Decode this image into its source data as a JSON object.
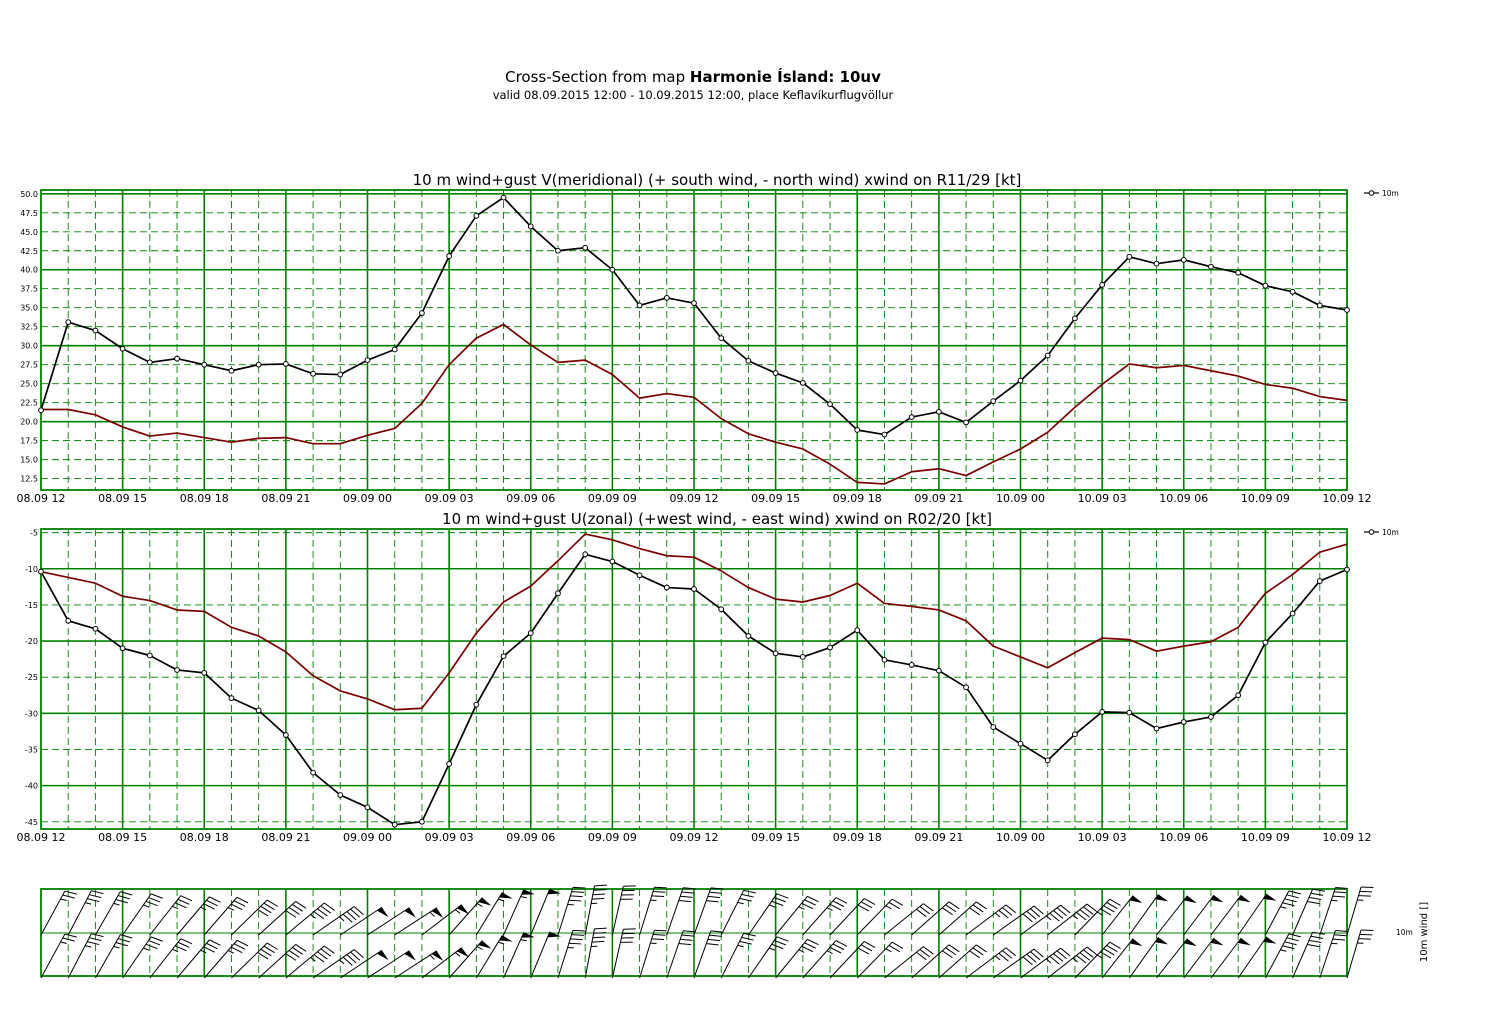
{
  "header": {
    "title_prefix": "Cross-Section from map ",
    "title_bold": "Harmonie Ísland: 10uv",
    "subtitle": "valid 08.09.2015 12:00 - 10.09.2015 12:00, place Keflavíkurflugvöllur"
  },
  "colors": {
    "grid": "#008000",
    "series_wind": "#000000",
    "series_gust": "#7a0000"
  },
  "x_tick_labels": [
    "08.09 12",
    "08.09 15",
    "08.09 18",
    "08.09 21",
    "09.09 00",
    "09.09 03",
    "09.09 06",
    "09.09 09",
    "09.09 12",
    "09.09 15",
    "09.09 18",
    "09.09 21",
    "10.09 00",
    "10.09 03",
    "10.09 06",
    "10.09 09",
    "10.09 12"
  ],
  "chart_data": [
    {
      "type": "line",
      "title": "10 m wind+gust V(meridional) (+ south wind, - north wind) xwind on R11/29 [kt]",
      "x_hours": [
        0,
        1,
        2,
        3,
        4,
        5,
        6,
        7,
        8,
        9,
        10,
        11,
        12,
        13,
        14,
        15,
        16,
        17,
        18,
        19,
        20,
        21,
        22,
        23,
        24,
        25,
        26,
        27,
        28,
        29,
        30,
        31,
        32,
        33,
        34,
        35,
        36,
        37,
        38,
        39,
        40,
        41,
        42,
        43,
        44,
        45,
        46,
        47,
        48
      ],
      "ylim": [
        11,
        50.5
      ],
      "yticks": [
        "12.5",
        "15.0",
        "17.5",
        "20.0",
        "22.5",
        "25.0",
        "27.5",
        "30.0",
        "32.5",
        "35.0",
        "37.5",
        "40.0",
        "42.5",
        "45.0",
        "47.5",
        "50.0"
      ],
      "legend": {
        "label": "10m",
        "position": "top-right"
      },
      "series": [
        {
          "name": "10m",
          "role": "wind",
          "markers": true,
          "values": [
            21.5,
            33.1,
            32.0,
            29.6,
            27.8,
            28.3,
            27.5,
            26.7,
            27.5,
            27.6,
            26.3,
            26.2,
            28.1,
            29.5,
            34.3,
            41.8,
            47.1,
            49.5,
            45.7,
            42.5,
            42.9,
            40.0,
            35.3,
            36.3,
            35.6,
            31.0,
            28.0,
            26.4,
            25.1,
            22.3,
            18.9,
            18.3,
            20.6,
            21.3,
            19.9,
            22.7,
            25.4,
            28.7,
            33.6,
            38.0,
            41.7,
            40.8,
            41.3,
            40.4,
            39.6,
            37.9,
            37.1,
            35.3,
            34.7
          ]
        },
        {
          "name": "",
          "role": "gust",
          "markers": false,
          "values": [
            21.6,
            21.6,
            20.9,
            19.3,
            18.1,
            18.5,
            17.9,
            17.3,
            17.8,
            17.9,
            17.1,
            17.1,
            18.2,
            19.1,
            22.4,
            27.5,
            31.0,
            32.8,
            30.1,
            27.8,
            28.1,
            26.2,
            23.1,
            23.7,
            23.2,
            20.4,
            18.4,
            17.3,
            16.4,
            14.4,
            12.0,
            11.8,
            13.4,
            13.8,
            12.9,
            14.7,
            16.4,
            18.6,
            21.9,
            24.9,
            27.6,
            27.1,
            27.4,
            26.7,
            26.0,
            24.9,
            24.4,
            23.3,
            22.8
          ]
        }
      ]
    },
    {
      "type": "line",
      "title": "10 m wind+gust U(zonal) (+west wind, - east wind) xwind on R02/20 [kt]",
      "x_hours": [
        0,
        1,
        2,
        3,
        4,
        5,
        6,
        7,
        8,
        9,
        10,
        11,
        12,
        13,
        14,
        15,
        16,
        17,
        18,
        19,
        20,
        21,
        22,
        23,
        24,
        25,
        26,
        27,
        28,
        29,
        30,
        31,
        32,
        33,
        34,
        35,
        36,
        37,
        38,
        39,
        40,
        41,
        42,
        43,
        44,
        45,
        46,
        47,
        48
      ],
      "ylim": [
        -46,
        -4.5
      ],
      "yticks": [
        "-45",
        "-40",
        "-35",
        "-30",
        "-25",
        "-20",
        "-15",
        "-10",
        "-5"
      ],
      "legend": {
        "label": "10m",
        "position": "top-right"
      },
      "series": [
        {
          "name": "10m",
          "role": "wind",
          "markers": true,
          "values": [
            -10.4,
            -17.2,
            -18.3,
            -21.0,
            -22.0,
            -24.0,
            -24.4,
            -27.9,
            -29.6,
            -33.0,
            -38.2,
            -41.3,
            -43.0,
            -45.4,
            -45.0,
            -37.0,
            -28.8,
            -22.1,
            -18.9,
            -13.4,
            -8.0,
            -9.0,
            -10.9,
            -12.6,
            -12.8,
            -15.6,
            -19.3,
            -21.7,
            -22.2,
            -20.9,
            -18.5,
            -22.6,
            -23.3,
            -24.1,
            -26.4,
            -31.9,
            -34.2,
            -36.5,
            -32.9,
            -29.8,
            -29.9,
            -32.1,
            -31.2,
            -30.5,
            -27.5,
            -20.2,
            -16.2,
            -11.7,
            -10.1
          ]
        },
        {
          "name": "",
          "role": "gust",
          "markers": false,
          "values": [
            -10.4,
            -11.2,
            -12.0,
            -13.8,
            -14.4,
            -15.7,
            -15.9,
            -18.1,
            -19.3,
            -21.5,
            -24.8,
            -26.9,
            -28.0,
            -29.5,
            -29.3,
            -24.4,
            -18.9,
            -14.6,
            -12.4,
            -8.9,
            -5.2,
            -6.0,
            -7.2,
            -8.2,
            -8.4,
            -10.3,
            -12.6,
            -14.2,
            -14.6,
            -13.7,
            -12.0,
            -14.8,
            -15.2,
            -15.7,
            -17.2,
            -20.7,
            -22.2,
            -23.7,
            -21.6,
            -19.6,
            -19.8,
            -21.4,
            -20.7,
            -20.1,
            -18.1,
            -13.4,
            -10.8,
            -7.7,
            -6.6
          ]
        }
      ]
    },
    {
      "type": "wind_barbs",
      "ylabel": "10m wind []",
      "row_label": "10m",
      "directions_deg": [
        28.5,
        27.6,
        29.9,
        34.7,
        38.2,
        40.3,
        41.0,
        45.6,
        47.8,
        50.2,
        55.3,
        56.3,
        56.8,
        57.1,
        52.7,
        41.6,
        31.4,
        24.0,
        22.4,
        17.5,
        10.7,
        12.7,
        17.2,
        19.1,
        19.7,
        26.7,
        34.6,
        39.4,
        41.5,
        43.1,
        44.3,
        51.1,
        48.4,
        48.6,
        53.0,
        54.6,
        53.4,
        51.8,
        44.3,
        38.1,
        35.6,
        38.2,
        37.1,
        37.1,
        34.7,
        28.0,
        23.6,
        18.3,
        16.3
      ],
      "speeds_kt": [
        23.8,
        36.9,
        37.1,
        36.4,
        35.3,
        37.0,
        36.8,
        38.8,
        40.3,
        43.0,
        46.3,
        48.6,
        51.5,
        53.8,
        56.8,
        55.8,
        55.2,
        53.9,
        49.4,
        44.6,
        43.6,
        41.0,
        36.9,
        38.5,
        37.8,
        34.7,
        34.0,
        34.1,
        33.5,
        30.6,
        26.4,
        29.1,
        31.1,
        32.1,
        33.2,
        39.1,
        42.6,
        46.5,
        47.0,
        48.0,
        51.4,
        51.5,
        51.7,
        50.6,
        48.1,
        42.9,
        40.5,
        37.2,
        36.1
      ]
    }
  ]
}
